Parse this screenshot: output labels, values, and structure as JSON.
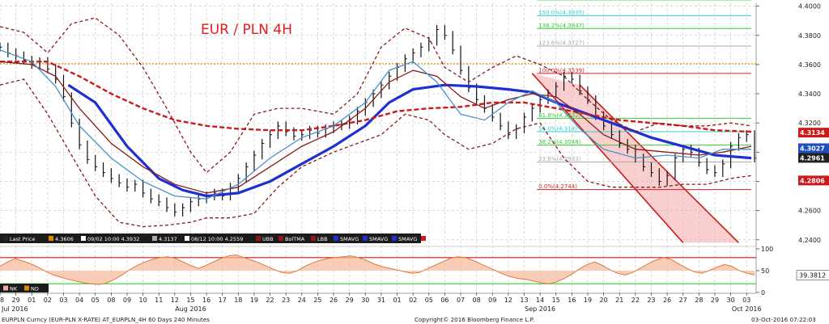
{
  "chart_data": {
    "type": "line",
    "title": "EUR / PLN 4H",
    "title_color": "#e41a1c",
    "ylim": [
      4.236,
      4.402
    ],
    "yticks": [
      4.24,
      4.26,
      4.28,
      4.3,
      4.32,
      4.34,
      4.36,
      4.38,
      4.4
    ],
    "ytick_labels": [
      "4.2400",
      "4.2600",
      "4.2800",
      "4.3000",
      "4.3200",
      "4.3400",
      "4.3600",
      "4.3800",
      "4.4000"
    ],
    "day_labels": [
      "28",
      "29",
      "01",
      "02",
      "03",
      "04",
      "05",
      "08",
      "09",
      "10",
      "11",
      "12",
      "15",
      "16",
      "17",
      "18",
      "19",
      "22",
      "23",
      "24",
      "25",
      "26",
      "29",
      "30",
      "31",
      "01",
      "02",
      "05",
      "06",
      "07",
      "08",
      "09",
      "12",
      "13",
      "14",
      "15",
      "16",
      "19",
      "20",
      "21",
      "22",
      "23",
      "26",
      "27",
      "28",
      "29",
      "30",
      "03"
    ],
    "month_labels": [
      "Jul 2016",
      "Aug 2016",
      "Sep 2016",
      "Oct 2016"
    ],
    "month_label_days": [
      0,
      12,
      34,
      47
    ],
    "x_start_day": 0,
    "x_end_day": 47.6,
    "close": [
      4.372,
      4.368,
      4.366,
      4.363,
      4.36,
      4.362,
      4.357,
      4.35,
      4.338,
      4.32,
      4.305,
      4.295,
      4.29,
      4.286,
      4.282,
      4.279,
      4.276,
      4.278,
      4.272,
      4.268,
      4.266,
      4.262,
      4.259,
      4.262,
      4.266,
      4.268,
      4.27,
      4.272,
      4.27,
      4.276,
      4.282,
      4.29,
      4.298,
      4.306,
      4.312,
      4.318,
      4.314,
      4.311,
      4.312,
      4.315,
      4.313,
      4.316,
      4.318,
      4.319,
      4.322,
      4.328,
      4.334,
      4.34,
      4.346,
      4.352,
      4.358,
      4.364,
      4.368,
      4.372,
      4.376,
      4.384,
      4.38,
      4.37,
      4.356,
      4.344,
      4.336,
      4.33,
      4.324,
      4.318,
      4.312,
      4.316,
      4.324,
      4.33,
      4.336,
      4.34,
      4.345,
      4.352,
      4.35,
      4.342,
      4.336,
      4.325,
      4.318,
      4.312,
      4.306,
      4.302,
      4.296,
      4.29,
      4.286,
      4.28,
      4.284,
      4.296,
      4.302,
      4.3,
      4.293,
      4.288,
      4.286,
      4.292,
      4.304,
      4.31,
      4.312,
      4.296
    ],
    "close_start_day": 0,
    "close_step_days": 0.5,
    "current_price": 4.3134,
    "series": [
      {
        "name": "SMAVG",
        "color": "#1f2fd0",
        "points": [
          [
            4.3,
            4.346
          ],
          [
            6,
            4.334
          ],
          [
            8,
            4.304
          ],
          [
            10,
            4.282
          ],
          [
            11.5,
            4.274
          ],
          [
            13,
            4.27
          ],
          [
            15,
            4.272
          ],
          [
            17,
            4.28
          ],
          [
            19,
            4.292
          ],
          [
            21,
            4.304
          ],
          [
            23,
            4.318
          ],
          [
            24.5,
            4.334
          ],
          [
            26,
            4.343
          ],
          [
            28,
            4.346
          ],
          [
            30,
            4.345
          ],
          [
            32,
            4.343
          ],
          [
            33.5,
            4.341
          ],
          [
            35,
            4.334
          ],
          [
            37,
            4.326
          ],
          [
            39,
            4.318
          ],
          [
            41,
            4.31
          ],
          [
            43,
            4.304
          ],
          [
            45,
            4.298
          ],
          [
            47.3,
            4.296
          ]
        ]
      },
      {
        "name": "SMAVG",
        "color": "#cc1a1a",
        "dashed": true,
        "points": [
          [
            0,
            4.362
          ],
          [
            3,
            4.362
          ],
          [
            5,
            4.352
          ],
          [
            7,
            4.34
          ],
          [
            9,
            4.33
          ],
          [
            11,
            4.322
          ],
          [
            13,
            4.318
          ],
          [
            15,
            4.316
          ],
          [
            17,
            4.315
          ],
          [
            19,
            4.315
          ],
          [
            21,
            4.318
          ],
          [
            23,
            4.322
          ],
          [
            25,
            4.328
          ],
          [
            27,
            4.33
          ],
          [
            29,
            4.331
          ],
          [
            31,
            4.334
          ],
          [
            33,
            4.334
          ],
          [
            35,
            4.33
          ],
          [
            37,
            4.326
          ],
          [
            39,
            4.322
          ],
          [
            41,
            4.32
          ],
          [
            43,
            4.318
          ],
          [
            45,
            4.315
          ],
          [
            47.3,
            4.314
          ]
        ]
      },
      {
        "name": "BolTMA",
        "color": "#8b1a1a",
        "points": [
          [
            0,
            4.362
          ],
          [
            2,
            4.36
          ],
          [
            3.5,
            4.352
          ],
          [
            5,
            4.33
          ],
          [
            7,
            4.306
          ],
          [
            9,
            4.29
          ],
          [
            11,
            4.278
          ],
          [
            13,
            4.272
          ],
          [
            15,
            4.276
          ],
          [
            17,
            4.29
          ],
          [
            19,
            4.304
          ],
          [
            21,
            4.314
          ],
          [
            23,
            4.33
          ],
          [
            24.5,
            4.348
          ],
          [
            26,
            4.356
          ],
          [
            27.5,
            4.352
          ],
          [
            29,
            4.338
          ],
          [
            30.5,
            4.33
          ],
          [
            32,
            4.336
          ],
          [
            33.5,
            4.34
          ],
          [
            35,
            4.338
          ],
          [
            36.5,
            4.326
          ],
          [
            38,
            4.312
          ],
          [
            40,
            4.302
          ],
          [
            42,
            4.3
          ],
          [
            44,
            4.298
          ],
          [
            45.5,
            4.3
          ],
          [
            47.3,
            4.304
          ]
        ]
      },
      {
        "name": "EMAVG",
        "color": "#4a90c8",
        "points": [
          [
            0,
            4.37
          ],
          [
            2,
            4.362
          ],
          [
            3.5,
            4.345
          ],
          [
            5,
            4.318
          ],
          [
            7,
            4.296
          ],
          [
            9,
            4.28
          ],
          [
            11,
            4.27
          ],
          [
            13,
            4.268
          ],
          [
            15,
            4.278
          ],
          [
            17,
            4.296
          ],
          [
            19,
            4.31
          ],
          [
            21,
            4.318
          ],
          [
            23,
            4.334
          ],
          [
            24.5,
            4.356
          ],
          [
            26,
            4.362
          ],
          [
            27.5,
            4.348
          ],
          [
            29,
            4.326
          ],
          [
            30.5,
            4.322
          ],
          [
            32,
            4.334
          ],
          [
            33.5,
            4.342
          ],
          [
            35,
            4.334
          ],
          [
            36.5,
            4.316
          ],
          [
            38,
            4.302
          ],
          [
            40,
            4.296
          ],
          [
            42,
            4.298
          ],
          [
            44,
            4.296
          ],
          [
            45.5,
            4.302
          ],
          [
            47.3,
            4.302
          ]
        ]
      },
      {
        "name": "UBB",
        "color": "#8b1a1a",
        "dashed": true,
        "points": [
          [
            0,
            4.386
          ],
          [
            1.5,
            4.382
          ],
          [
            3,
            4.368
          ],
          [
            4.5,
            4.388
          ],
          [
            6,
            4.392
          ],
          [
            7.5,
            4.38
          ],
          [
            9,
            4.358
          ],
          [
            10.5,
            4.33
          ],
          [
            12,
            4.3
          ],
          [
            13,
            4.286
          ],
          [
            14.5,
            4.3
          ],
          [
            16,
            4.326
          ],
          [
            17.5,
            4.33
          ],
          [
            19,
            4.33
          ],
          [
            21,
            4.326
          ],
          [
            22.5,
            4.34
          ],
          [
            24,
            4.372
          ],
          [
            25.5,
            4.385
          ],
          [
            27,
            4.378
          ],
          [
            28,
            4.358
          ],
          [
            29.5,
            4.348
          ],
          [
            31,
            4.358
          ],
          [
            32.5,
            4.366
          ],
          [
            34,
            4.36
          ],
          [
            35.5,
            4.352
          ],
          [
            37,
            4.336
          ],
          [
            38.5,
            4.322
          ],
          [
            40,
            4.314
          ],
          [
            41.5,
            4.32
          ],
          [
            43,
            4.318
          ],
          [
            44.5,
            4.318
          ],
          [
            46,
            4.32
          ],
          [
            47.3,
            4.318
          ]
        ]
      },
      {
        "name": "LBB",
        "color": "#8b1a1a",
        "dashed": true,
        "points": [
          [
            0,
            4.346
          ],
          [
            1.5,
            4.35
          ],
          [
            3,
            4.326
          ],
          [
            4.5,
            4.298
          ],
          [
            6,
            4.27
          ],
          [
            7.5,
            4.252
          ],
          [
            9,
            4.249
          ],
          [
            10.5,
            4.25
          ],
          [
            12,
            4.252
          ],
          [
            13,
            4.255
          ],
          [
            14.5,
            4.255
          ],
          [
            16,
            4.258
          ],
          [
            17.5,
            4.276
          ],
          [
            19,
            4.29
          ],
          [
            21,
            4.3
          ],
          [
            22.5,
            4.306
          ],
          [
            24,
            4.312
          ],
          [
            25.5,
            4.326
          ],
          [
            27,
            4.322
          ],
          [
            28,
            4.312
          ],
          [
            29.5,
            4.302
          ],
          [
            31,
            4.306
          ],
          [
            32.5,
            4.316
          ],
          [
            34,
            4.32
          ],
          [
            35.5,
            4.296
          ],
          [
            37,
            4.28
          ],
          [
            38.5,
            4.276
          ],
          [
            40,
            4.276
          ],
          [
            41.5,
            4.276
          ],
          [
            43,
            4.278
          ],
          [
            44.5,
            4.278
          ],
          [
            46,
            4.282
          ],
          [
            47.3,
            4.284
          ]
        ]
      }
    ],
    "hlines": [
      {
        "value": 4.3606,
        "color": "#e08a00",
        "dashed": true
      }
    ],
    "fibonacci": [
      {
        "label": "161.8%(4.4043)",
        "value": 4.4043,
        "color": "#33cc33"
      },
      {
        "label": "150.0%(4.3935)",
        "value": 4.3935,
        "color": "#33cccc"
      },
      {
        "label": "138.2%(4.3847)",
        "value": 4.3847,
        "color": "#33cc33"
      },
      {
        "label": "123.6%(4.3727)",
        "value": 4.3727,
        "color": "#aaaaaa"
      },
      {
        "label": "100.0%(4.3539)",
        "value": 4.3539,
        "color": "#cc2222"
      },
      {
        "label": "61.8%(4.3232)",
        "value": 4.3232,
        "color": "#33cc33"
      },
      {
        "label": "50.0%(4.314)",
        "value": 4.314,
        "color": "#33cccc"
      },
      {
        "label": "38.2%(4.3048)",
        "value": 4.3048,
        "color": "#33cc33"
      },
      {
        "label": "23.6%(4.2933)",
        "value": 4.2933,
        "color": "#aaaaaa"
      },
      {
        "label": "0.0%(4.2744)",
        "value": 4.2744,
        "color": "#cc2222"
      }
    ],
    "fib_x_range": [
      33.8,
      47.3
    ],
    "channel": {
      "color": "#cc1a1a",
      "fill": "#f4a8a8",
      "upper": [
        [
          33.5,
          4.354
        ],
        [
          43,
          4.238
        ]
      ],
      "lower": [
        [
          36.5,
          4.346
        ],
        [
          46.5,
          4.238
        ]
      ]
    },
    "price_tags": [
      {
        "label": "4.3134",
        "value": 4.3134,
        "bg": "#cc1a1a"
      },
      {
        "label": "4.3027",
        "value": 4.3027,
        "bg": "#1f4fbf"
      },
      {
        "label": "4.2961",
        "value": 4.2961,
        "bg": "#222222"
      },
      {
        "label": "4.2806",
        "value": 4.2806,
        "bg": "#cc1a1a"
      }
    ],
    "legend": [
      {
        "label": "Last Price",
        "color": "#222222"
      },
      {
        "label": "4.3606",
        "color": "#e08a00"
      },
      {
        "label": "09/02 10:00 4.3932",
        "color": "#ffffff"
      },
      {
        "label": "4.3137",
        "color": "#aaaaaa"
      },
      {
        "label": "08/12 10:00 4.2559",
        "color": "#ffffff"
      },
      {
        "label": "UBB",
        "color": "#8b1a1a"
      },
      {
        "label": "BolTMA",
        "color": "#8b1a1a"
      },
      {
        "label": "LBB",
        "color": "#8b1a1a"
      },
      {
        "label": "SMAVG",
        "color": "#1f2fd0"
      },
      {
        "label": "SMAVG",
        "color": "#1f2fd0"
      },
      {
        "label": "SMAVG",
        "color": "#1f2fd0"
      },
      {
        "label": "EMAVG",
        "color": "#cc1a1a"
      }
    ],
    "oscillator": {
      "ylim": [
        0,
        100
      ],
      "yticks": [
        0,
        50,
        100
      ],
      "ytick_labels": [
        "0",
        "50",
        "100"
      ],
      "levels": [
        {
          "value": 80,
          "color": "#cc1a1a"
        },
        {
          "value": 20,
          "color": "#33cc33"
        }
      ],
      "value_label": "39.3812",
      "legend": [
        {
          "label": "NK",
          "color": "#f4a8a8"
        },
        {
          "label": "ND",
          "color": "#e08a00"
        }
      ],
      "values": [
        60,
        70,
        78,
        72,
        66,
        58,
        48,
        40,
        35,
        30,
        26,
        22,
        20,
        18,
        22,
        30,
        40,
        52,
        62,
        70,
        76,
        80,
        82,
        78,
        70,
        62,
        55,
        62,
        70,
        78,
        84,
        86,
        80,
        74,
        68,
        60,
        52,
        46,
        44,
        50,
        60,
        68,
        74,
        78,
        80,
        82,
        84,
        80,
        74,
        66,
        60,
        56,
        52,
        48,
        44,
        46,
        54,
        62,
        70,
        78,
        82,
        80,
        74,
        66,
        58,
        50,
        42,
        36,
        32,
        30,
        26,
        22,
        20,
        24,
        32,
        42,
        54,
        64,
        70,
        62,
        52,
        44,
        40,
        46,
        56,
        66,
        74,
        80,
        76,
        66,
        56,
        48,
        44,
        50,
        58,
        64,
        60,
        50,
        44,
        40
      ],
      "values_step_days": 0.48
    },
    "footer": {
      "left": "EURPLN Curncy (EUR-PLN X-RATE) AT_EURPLN_4H 60 Days 240 Minutes",
      "center": "Copyright© 2016 Bloomberg Finance L.P.",
      "right": "03-Oct-2016 07:22:03"
    }
  }
}
